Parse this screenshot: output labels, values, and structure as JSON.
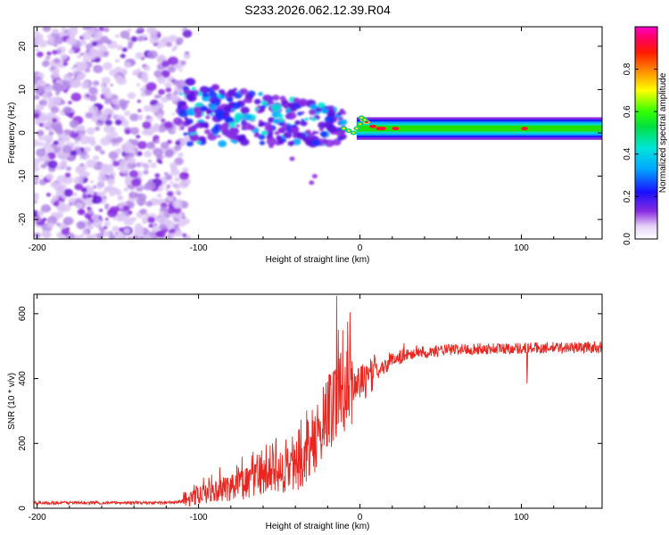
{
  "title": "S233.2026.062.12.39.R04",
  "chart_data": [
    {
      "type": "heatmap",
      "name": "spectrogram",
      "xlabel": "Height of straight line (km)",
      "ylabel": "Frequency (Hz)",
      "xlim": [
        -202,
        150
      ],
      "ylim": [
        -24.5,
        24.5
      ],
      "xticks": [
        -200,
        -100,
        0,
        100
      ],
      "yticks": [
        -20,
        -10,
        0,
        10,
        20
      ],
      "colorbar": {
        "label": "Normalized spectral amplitude",
        "range": [
          0,
          1
        ],
        "ticks": [
          0.0,
          0.2,
          0.4,
          0.6,
          0.8
        ]
      },
      "features": {
        "noise_region_x": [
          -202,
          -107
        ],
        "trace_start_x": 0,
        "trace_frequency_hz": 1
      }
    },
    {
      "type": "line",
      "name": "snr",
      "xlabel": "Height of straight line (km)",
      "ylabel": "SNR (10 * v/v)",
      "xlim": [
        -202,
        150
      ],
      "ylim": [
        0,
        660
      ],
      "xticks": [
        -200,
        -100,
        0,
        100
      ],
      "yticks": [
        0,
        200,
        400,
        600
      ],
      "color": "#e8251f",
      "profile": {
        "x": [
          -202,
          -120,
          -105,
          -90,
          -80,
          -70,
          -60,
          -50,
          -40,
          -30,
          -25,
          -20,
          -17,
          -14,
          -10,
          -7,
          -5,
          -3,
          0,
          5,
          10,
          15,
          20,
          25,
          30,
          35,
          40,
          45,
          50,
          60,
          80,
          100,
          120,
          150
        ],
        "y": [
          17,
          17,
          22,
          45,
          55,
          65,
          78,
          88,
          105,
          150,
          200,
          260,
          290,
          320,
          330,
          345,
          355,
          365,
          370,
          385,
          410,
          430,
          450,
          462,
          470,
          475,
          480,
          484,
          487,
          490,
          492,
          494,
          495,
          497
        ]
      },
      "spikes": [
        {
          "x": -14.5,
          "y": 655
        },
        {
          "x": -13.5,
          "y": 550
        },
        {
          "x": -12,
          "y": 480
        },
        {
          "x": 103.5,
          "y": 385
        }
      ]
    }
  ]
}
